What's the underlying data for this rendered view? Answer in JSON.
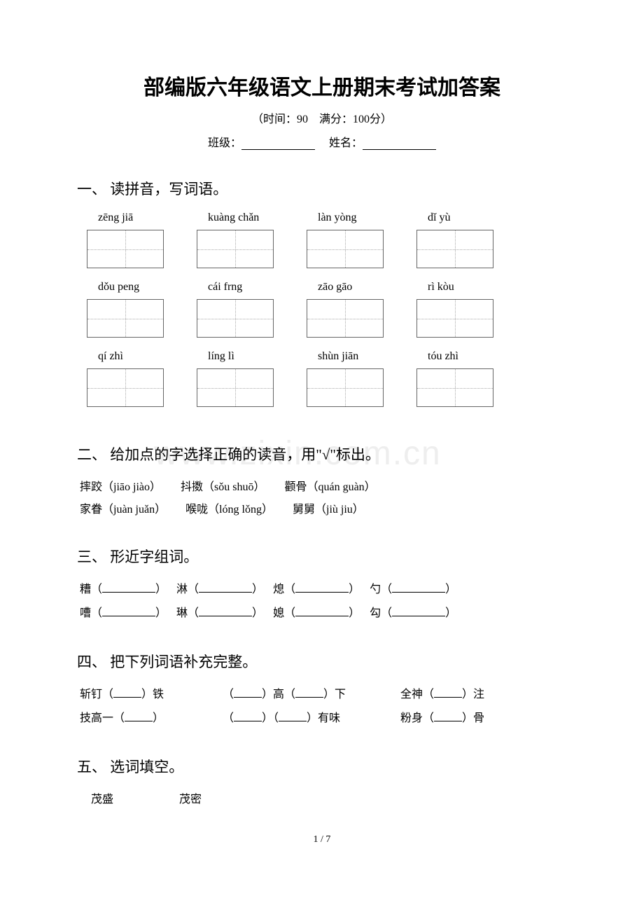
{
  "title": "部编版六年级语文上册期末考试加答案",
  "subtitle": "（时间：90　满分：100分）",
  "class_label": "班级：",
  "name_label": "　姓名：",
  "watermark": "www.zixin.com.cn",
  "page_num": "1 / 7",
  "sections": {
    "s1": {
      "title": "一、 读拼音，写词语。",
      "rows": [
        [
          "zēng jiā",
          "kuàng chǎn",
          "làn yòng",
          "dǐ yù"
        ],
        [
          "dǒu peng",
          "cái frng",
          "zāo gāo",
          "rì kòu"
        ],
        [
          "qí zhì",
          "líng lì",
          "shùn jiān",
          "tóu zhì"
        ]
      ]
    },
    "s2": {
      "title": "二、 给加点的字选择正确的读音，用\"√\"标出。",
      "items": [
        [
          "摔跤（jiāo jiào）",
          "抖擞（sǒu shuō）",
          "颧骨（quán guàn）"
        ],
        [
          "家眷（juàn juǎn）",
          "喉咙（lóng lǒng）",
          "舅舅（jiù jiu）"
        ]
      ]
    },
    "s3": {
      "title": "三、 形近字组词。",
      "rows": [
        [
          "糟（",
          "淋（",
          "熄（",
          "勺（"
        ],
        [
          "嘈（",
          "琳（",
          "媳（",
          "勾（"
        ]
      ]
    },
    "s4": {
      "title": "四、 把下列词语补充完整。",
      "rows": [
        {
          "a": "斩钉（",
          "a2": "）铁",
          "b": "（",
          "b2": "）高（",
          "b3": "）下",
          "c": "全神（",
          "c2": "）注"
        },
        {
          "a": "技高一（",
          "a2": "）",
          "b": "（",
          "b2": "）（",
          "b3": "）有味",
          "c": "粉身（",
          "c2": "）骨"
        }
      ]
    },
    "s5": {
      "title": "五、 选词填空。",
      "words": [
        "茂盛",
        "茂密"
      ]
    }
  }
}
